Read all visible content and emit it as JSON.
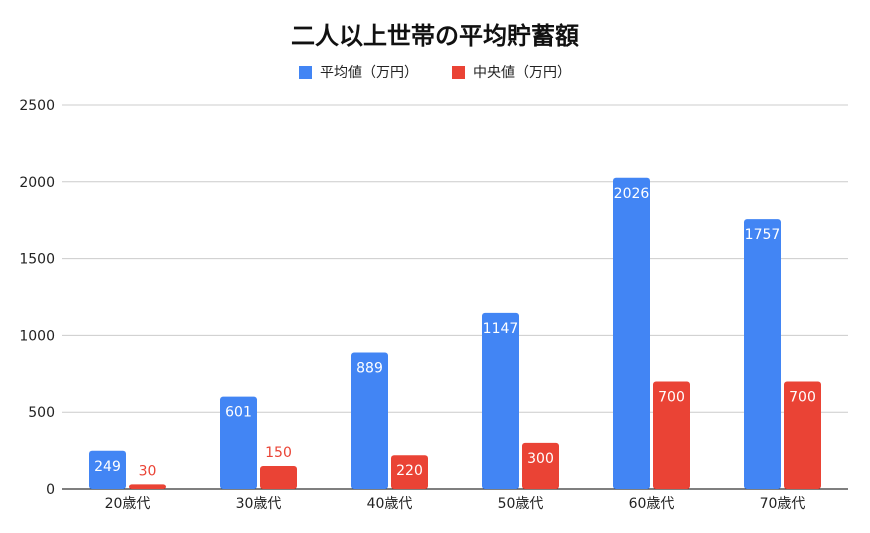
{
  "chart_data": {
    "type": "bar",
    "title": "二人以上世帯の平均貯蓄額",
    "categories": [
      "20歳代",
      "30歳代",
      "40歳代",
      "50歳代",
      "60歳代",
      "70歳代"
    ],
    "series": [
      {
        "name": "平均値（万円）",
        "color": "#4285f4",
        "values": [
          249,
          601,
          889,
          1147,
          2026,
          1757
        ]
      },
      {
        "name": "中央値（万円）",
        "color": "#ea4335",
        "values": [
          30,
          150,
          220,
          300,
          700,
          700
        ]
      }
    ],
    "yticks": [
      0,
      500,
      1000,
      1500,
      2000,
      2500
    ],
    "ylim": [
      0,
      2500
    ],
    "xlabel": "",
    "ylabel": "",
    "grid": true,
    "legend_position": "top"
  }
}
